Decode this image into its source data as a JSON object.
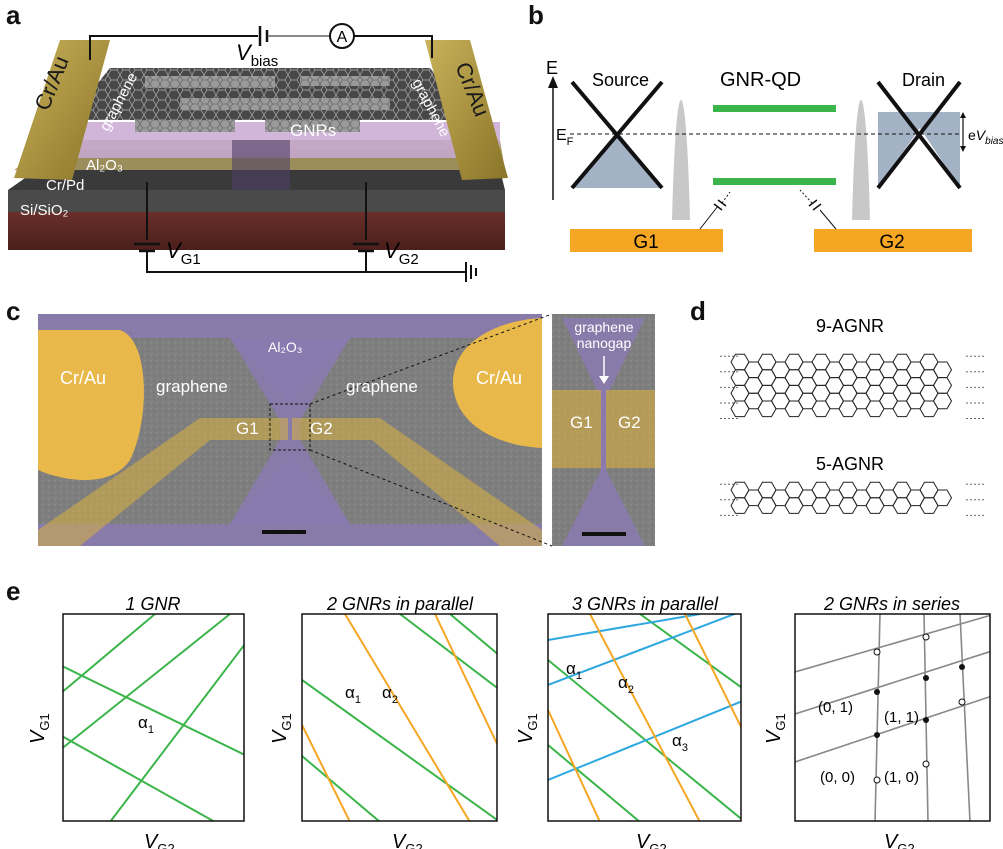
{
  "panels": {
    "a": {
      "label": "a",
      "v_bias": {
        "v": "V",
        "sub": "bias"
      },
      "ammeter": "A",
      "contact_left": "Cr/Au",
      "contact_right": "Cr/Au",
      "graphene_left": "graphene",
      "graphene_right": "graphene",
      "gnrs": "GNRs",
      "al2o3": "Al₂O₃",
      "crpd": "Cr/Pd",
      "sisio2": "Si/SiO₂",
      "vg1": {
        "v": "V",
        "sub": "G1"
      },
      "vg2": {
        "v": "V",
        "sub": "G2"
      }
    },
    "b": {
      "label": "b",
      "e_axis": "E",
      "source": "Source",
      "qd": "GNR-QD",
      "drain": "Drain",
      "ef": {
        "v": "E",
        "sub": "F"
      },
      "ebias": {
        "pre": "e",
        "v": "V",
        "sub": "bias"
      },
      "g1": "G1",
      "g2": "G2"
    },
    "c": {
      "label": "c",
      "contact_left": "Cr/Au",
      "contact_right": "Cr/Au",
      "al2o3": "Al₂O₃",
      "graphene_left": "graphene",
      "graphene_right": "graphene",
      "g1": "G1",
      "g2": "G2",
      "inset_label_1": "graphene",
      "inset_label_2": "nanogap",
      "inset_g1": "G1",
      "inset_g2": "G2"
    },
    "d": {
      "label": "d",
      "ribbon1": "9-AGNR",
      "ribbon2": "5-AGNR"
    },
    "e": {
      "label": "e",
      "plots": [
        {
          "title": "1 GNR",
          "y": {
            "v": "V",
            "sub": "G1"
          },
          "x": {
            "v": "V",
            "sub": "G2"
          },
          "alpha": [
            {
              "g": "α",
              "s": "1"
            }
          ]
        },
        {
          "title": "2 GNRs in parallel",
          "y": {
            "v": "V",
            "sub": "G1"
          },
          "x": {
            "v": "V",
            "sub": "G2"
          },
          "alpha": [
            {
              "g": "α",
              "s": "1"
            },
            {
              "g": "α",
              "s": "2"
            }
          ]
        },
        {
          "title": "3 GNRs in parallel",
          "y": {
            "v": "V",
            "sub": "G1"
          },
          "x": {
            "v": "V",
            "sub": "G2"
          },
          "alpha": [
            {
              "g": "α",
              "s": "1"
            },
            {
              "g": "α",
              "s": "2"
            },
            {
              "g": "α",
              "s": "3"
            }
          ]
        },
        {
          "title": "2 GNRs in series",
          "y": {
            "v": "V",
            "sub": "G1"
          },
          "x": {
            "v": "V",
            "sub": "G2"
          },
          "states": [
            "(0, 1)",
            "(1, 1)",
            "(0, 0)",
            "(1, 0)"
          ]
        }
      ]
    }
  },
  "colors": {
    "gold": "#b59b3c",
    "gate_orange": "#f5a623",
    "level_green": "#3bb54a",
    "line_orange": "#f5a623",
    "line_blue": "#2ea8e0",
    "series_gray": "#888888",
    "sem_gray": "#7d7d7d",
    "sem_purple": "#8a7ab0",
    "sem_yellow": "#e8b84a"
  }
}
